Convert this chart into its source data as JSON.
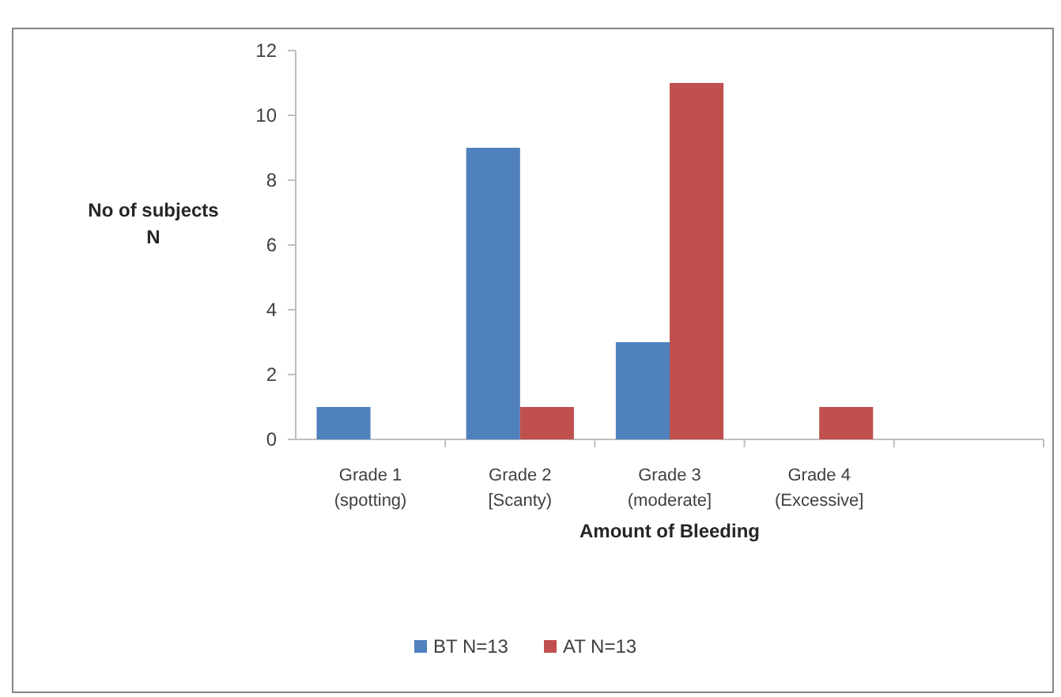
{
  "chart_data": {
    "type": "bar",
    "xlabel": "Amount of Bleeding",
    "ylabel": "No of subjects\nN",
    "categories": [
      "Grade 1\n(spotting)",
      "Grade 2\n[Scanty)",
      "Grade 3\n(moderate]",
      "Grade 4\n(Excessive]",
      null
    ],
    "series": [
      {
        "name": "BT N=13",
        "color": "#4f81bd",
        "values": [
          1,
          9,
          3,
          null,
          null
        ]
      },
      {
        "name": "AT N=13",
        "color": "#c0504d",
        "values": [
          null,
          1,
          11,
          1,
          null
        ]
      }
    ],
    "ylim": [
      0,
      12
    ],
    "yticks": [
      0,
      2,
      4,
      6,
      8,
      10,
      12
    ],
    "grid": false,
    "legend": "bottom"
  }
}
